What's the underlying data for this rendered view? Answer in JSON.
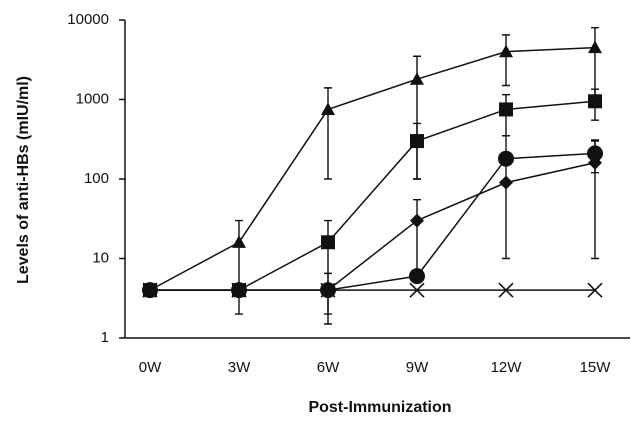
{
  "chart_data": {
    "type": "line",
    "xlabel": "Post-Immunization",
    "ylabel": "Levels of anti-HBs (mIU/ml)",
    "categories": [
      "0W",
      "3W",
      "6W",
      "9W",
      "12W",
      "15W"
    ],
    "ylim": [
      1,
      10000
    ],
    "yticks": [
      1,
      10,
      100,
      1000,
      10000
    ],
    "log_y": true,
    "grid": false,
    "series": [
      {
        "marker": "triangle",
        "color": "#111",
        "values": [
          4,
          16,
          750,
          1800,
          4000,
          4500
        ],
        "errors": [
          null,
          14,
          650,
          1700,
          2500,
          3500
        ]
      },
      {
        "marker": "square",
        "color": "#111",
        "values": [
          4,
          4,
          16,
          300,
          750,
          950
        ],
        "errors": [
          null,
          null,
          14,
          200,
          400,
          400
        ]
      },
      {
        "marker": "circle",
        "color": "#111",
        "values": [
          4,
          4,
          4,
          6,
          180,
          210
        ],
        "errors": [
          null,
          null,
          null,
          null,
          170,
          90
        ]
      },
      {
        "marker": "diamond",
        "color": "#111",
        "values": [
          4,
          4,
          4,
          30,
          90,
          160
        ],
        "errors": [
          null,
          null,
          2.5,
          25,
          null,
          150
        ]
      },
      {
        "marker": "x",
        "color": "#111",
        "values": [
          4,
          4,
          4,
          4,
          4,
          4
        ],
        "errors": [
          null,
          null,
          null,
          null,
          null,
          null
        ]
      }
    ]
  }
}
